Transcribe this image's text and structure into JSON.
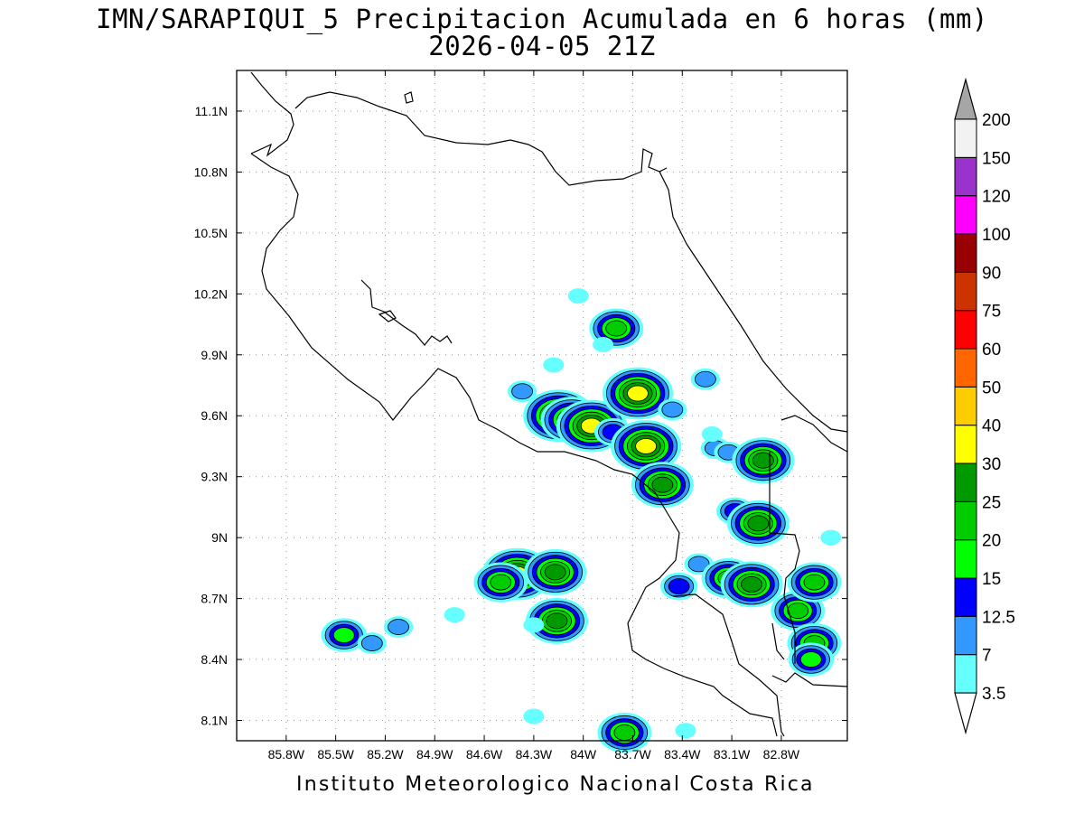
{
  "title": {
    "line1": "IMN/SARAPIQUI_5 Precipitacion Acumulada en 6 horas (mm)",
    "line2": "2026-04-05 21Z"
  },
  "footer": "Instituto Meteorologico Nacional Costa Rica",
  "map": {
    "lon_range": [
      -86.1,
      -82.4
    ],
    "lat_range": [
      8.0,
      11.3
    ],
    "grid": true,
    "lon_ticks": [
      {
        "value": -85.8,
        "label": "85.8W"
      },
      {
        "value": -85.5,
        "label": "85.5W"
      },
      {
        "value": -85.2,
        "label": "85.2W"
      },
      {
        "value": -84.9,
        "label": "84.9W"
      },
      {
        "value": -84.6,
        "label": "84.6W"
      },
      {
        "value": -84.3,
        "label": "84.3W"
      },
      {
        "value": -84.0,
        "label": "84W"
      },
      {
        "value": -83.7,
        "label": "83.7W"
      },
      {
        "value": -83.4,
        "label": "83.4W"
      },
      {
        "value": -83.1,
        "label": "83.1W"
      },
      {
        "value": -82.8,
        "label": "82.8W"
      }
    ],
    "lat_ticks": [
      {
        "value": 8.1,
        "label": "8.1N"
      },
      {
        "value": 8.4,
        "label": "8.4N"
      },
      {
        "value": 8.7,
        "label": "8.7N"
      },
      {
        "value": 9.0,
        "label": "9N"
      },
      {
        "value": 9.3,
        "label": "9.3N"
      },
      {
        "value": 9.6,
        "label": "9.6N"
      },
      {
        "value": 9.9,
        "label": "9.9N"
      },
      {
        "value": 10.2,
        "label": "10.2N"
      },
      {
        "value": 10.5,
        "label": "10.5N"
      },
      {
        "value": 10.8,
        "label": "10.8N"
      },
      {
        "value": 11.1,
        "label": "11.1N"
      }
    ]
  },
  "colorbar": {
    "levels": [
      "3.5",
      "7",
      "12.5",
      "15",
      "20",
      "25",
      "30",
      "40",
      "50",
      "60",
      "75",
      "90",
      "100",
      "120",
      "150",
      "200"
    ],
    "colors": [
      "#66ffff",
      "#3399ff",
      "#0000ff",
      "#00ff00",
      "#00cc00",
      "#009900",
      "#ffff00",
      "#ffcc00",
      "#ff6600",
      "#ff0000",
      "#cc3300",
      "#990000",
      "#ff00ff",
      "#9933cc",
      "#f2f2f2"
    ],
    "over_color": "#a6a6a6",
    "under_color": "#ffffff"
  },
  "precip_cells": [
    {
      "lon": -83.8,
      "lat": 10.03,
      "value": 22
    },
    {
      "lon": -84.03,
      "lat": 10.19,
      "value": 5
    },
    {
      "lon": -83.88,
      "lat": 9.95,
      "value": 5
    },
    {
      "lon": -84.18,
      "lat": 9.85,
      "value": 5
    },
    {
      "lon": -84.37,
      "lat": 9.72,
      "value": 9
    },
    {
      "lon": -84.15,
      "lat": 9.6,
      "value": 35
    },
    {
      "lon": -84.07,
      "lat": 9.58,
      "value": 25
    },
    {
      "lon": -83.95,
      "lat": 9.55,
      "value": 35
    },
    {
      "lon": -83.82,
      "lat": 9.52,
      "value": 14
    },
    {
      "lon": -83.67,
      "lat": 9.71,
      "value": 30
    },
    {
      "lon": -83.62,
      "lat": 9.45,
      "value": 32
    },
    {
      "lon": -83.55,
      "lat": 9.3,
      "value": 14
    },
    {
      "lon": -83.52,
      "lat": 9.26,
      "value": 25
    },
    {
      "lon": -83.46,
      "lat": 9.63,
      "value": 9
    },
    {
      "lon": -83.26,
      "lat": 9.78,
      "value": 10
    },
    {
      "lon": -83.2,
      "lat": 9.44,
      "value": 9
    },
    {
      "lon": -83.12,
      "lat": 9.42,
      "value": 9
    },
    {
      "lon": -83.08,
      "lat": 9.13,
      "value": 14
    },
    {
      "lon": -82.91,
      "lat": 9.38,
      "value": 25
    },
    {
      "lon": -82.94,
      "lat": 9.07,
      "value": 25
    },
    {
      "lon": -84.4,
      "lat": 8.82,
      "value": 32
    },
    {
      "lon": -84.5,
      "lat": 8.78,
      "value": 22
    },
    {
      "lon": -84.17,
      "lat": 8.83,
      "value": 25
    },
    {
      "lon": -84.16,
      "lat": 8.59,
      "value": 25
    },
    {
      "lon": -84.3,
      "lat": 8.57,
      "value": 6
    },
    {
      "lon": -83.3,
      "lat": 8.87,
      "value": 9
    },
    {
      "lon": -83.12,
      "lat": 8.8,
      "value": 22
    },
    {
      "lon": -82.98,
      "lat": 8.77,
      "value": 25
    },
    {
      "lon": -82.7,
      "lat": 8.64,
      "value": 22
    },
    {
      "lon": -82.6,
      "lat": 8.78,
      "value": 22
    },
    {
      "lon": -82.6,
      "lat": 8.48,
      "value": 20
    },
    {
      "lon": -82.62,
      "lat": 8.4,
      "value": 16
    },
    {
      "lon": -83.42,
      "lat": 8.76,
      "value": 14
    },
    {
      "lon": -83.75,
      "lat": 8.04,
      "value": 22
    },
    {
      "lon": -85.45,
      "lat": 8.52,
      "value": 15
    },
    {
      "lon": -85.28,
      "lat": 8.48,
      "value": 8
    },
    {
      "lon": -85.12,
      "lat": 8.56,
      "value": 9
    },
    {
      "lon": -84.78,
      "lat": 8.62,
      "value": 5
    },
    {
      "lon": -84.3,
      "lat": 8.12,
      "value": 6
    },
    {
      "lon": -83.38,
      "lat": 8.05,
      "value": 6
    },
    {
      "lon": -82.5,
      "lat": 9.0,
      "value": 5
    },
    {
      "lon": -83.22,
      "lat": 9.51,
      "value": 5
    }
  ]
}
